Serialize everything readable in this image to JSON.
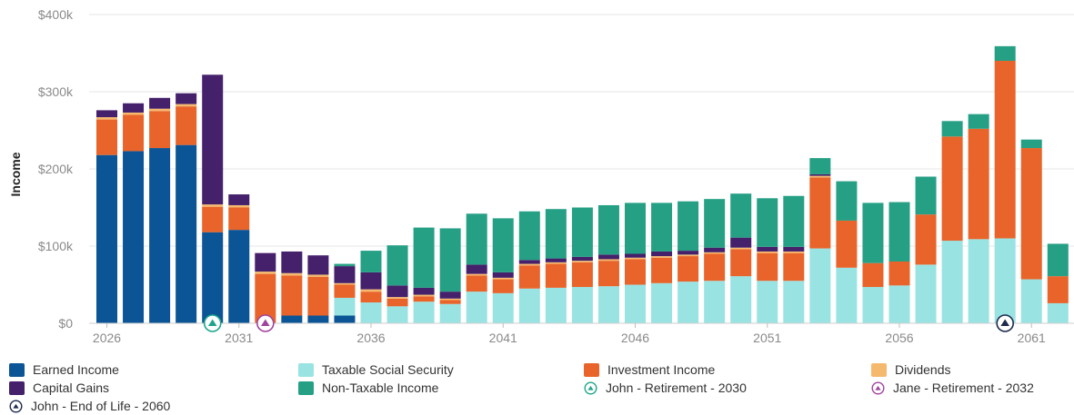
{
  "chart_data": {
    "type": "bar",
    "stacked": true,
    "ylabel": "Income",
    "ylim": [
      0,
      400000
    ],
    "yticks": [
      {
        "value": 0,
        "label": "$0"
      },
      {
        "value": 100000,
        "label": "$100k"
      },
      {
        "value": 200000,
        "label": "$200k"
      },
      {
        "value": 300000,
        "label": "$300k"
      },
      {
        "value": 400000,
        "label": "$400k"
      }
    ],
    "xticks": [
      "2026",
      "2031",
      "2036",
      "2041",
      "2046",
      "2051",
      "2056",
      "2061"
    ],
    "grid": true,
    "legend_position": "bottom",
    "categories": [
      2026,
      2027,
      2028,
      2029,
      2030,
      2031,
      2032,
      2033,
      2034,
      2035,
      2036,
      2037,
      2038,
      2039,
      2040,
      2041,
      2042,
      2043,
      2044,
      2045,
      2046,
      2047,
      2048,
      2049,
      2050,
      2051,
      2052,
      2053,
      2054,
      2055,
      2056,
      2057,
      2058,
      2059,
      2060,
      2061,
      2062
    ],
    "series": [
      {
        "name": "Earned Income",
        "color": "#0b5596",
        "values": [
          218000,
          223000,
          227000,
          231000,
          118000,
          121000,
          0,
          10000,
          10000,
          10000,
          0,
          0,
          0,
          0,
          0,
          0,
          0,
          0,
          0,
          0,
          0,
          0,
          0,
          0,
          0,
          0,
          0,
          0,
          0,
          0,
          0,
          0,
          0,
          0,
          0,
          0,
          0
        ]
      },
      {
        "name": "Taxable Social Security",
        "color": "#9ae3e3",
        "values": [
          0,
          0,
          0,
          0,
          0,
          0,
          0,
          0,
          0,
          23000,
          27000,
          22000,
          28000,
          25000,
          41000,
          39000,
          45000,
          46000,
          47000,
          48000,
          50000,
          52000,
          54000,
          55000,
          61000,
          55000,
          55000,
          97000,
          72000,
          47000,
          49000,
          76000,
          107000,
          109000,
          110000,
          57000,
          26000
        ]
      },
      {
        "name": "Investment Income",
        "color": "#e8642a",
        "values": [
          46000,
          47000,
          48000,
          50000,
          33000,
          29000,
          64000,
          52000,
          50000,
          17000,
          14000,
          10000,
          7000,
          5000,
          21000,
          18000,
          30000,
          31000,
          32000,
          33000,
          33000,
          33000,
          33000,
          35000,
          35000,
          36000,
          36000,
          92000,
          61000,
          31000,
          31000,
          65000,
          135000,
          143000,
          230000,
          170000,
          35000
        ]
      },
      {
        "name": "Dividends",
        "color": "#f5b96e",
        "values": [
          3000,
          3000,
          3000,
          3000,
          3000,
          3000,
          3000,
          3000,
          3000,
          2000,
          3000,
          2000,
          2000,
          2000,
          2000,
          2000,
          2000,
          2000,
          2000,
          2000,
          2000,
          2000,
          2000,
          2000,
          2000,
          2000,
          2000,
          2000,
          0,
          0,
          0,
          0,
          0,
          0,
          0,
          0,
          0
        ]
      },
      {
        "name": "Capital Gains",
        "color": "#45206b",
        "values": [
          9000,
          12000,
          14000,
          14000,
          168000,
          14000,
          24000,
          28000,
          25000,
          22000,
          22000,
          15000,
          9000,
          9000,
          12000,
          7000,
          5000,
          5000,
          5000,
          6000,
          5000,
          6000,
          5000,
          6000,
          13000,
          6000,
          6000,
          2000,
          0,
          0,
          0,
          0,
          0,
          0,
          0,
          0,
          0
        ]
      },
      {
        "name": "Non-Taxable Income",
        "color": "#26a085",
        "values": [
          0,
          0,
          0,
          0,
          0,
          0,
          0,
          0,
          0,
          3000,
          28000,
          52000,
          78000,
          82000,
          66000,
          70000,
          63000,
          64000,
          64000,
          64000,
          66000,
          63000,
          64000,
          63000,
          57000,
          63000,
          66000,
          21000,
          51000,
          78000,
          77000,
          49000,
          20000,
          19000,
          19000,
          11000,
          42000
        ]
      }
    ],
    "markers": [
      {
        "name": "John - Retirement - 2030",
        "year": 2030,
        "style": "teal-outline"
      },
      {
        "name": "Jane - Retirement - 2032",
        "year": 2032,
        "style": "purple-outline"
      },
      {
        "name": "John - End of Life - 2060",
        "year": 2060,
        "style": "navy-filled"
      }
    ]
  },
  "legend": {
    "earned": "Earned Income",
    "taxable_ss": "Taxable Social Security",
    "investment": "Investment Income",
    "dividends": "Dividends",
    "capital_gains": "Capital Gains",
    "non_taxable": "Non-Taxable Income",
    "john_retirement": "John - Retirement - 2030",
    "jane_retirement": "Jane - Retirement - 2032",
    "john_eol": "John - End of Life - 2060"
  },
  "colors": {
    "earned": "#0b5596",
    "taxable_ss": "#9ae3e3",
    "investment": "#e8642a",
    "dividends": "#f5b96e",
    "capital_gains": "#45206b",
    "non_taxable": "#26a085",
    "marker_teal": "#1fa58a",
    "marker_purple": "#a0449e",
    "marker_navy": "#1d2a4e"
  }
}
